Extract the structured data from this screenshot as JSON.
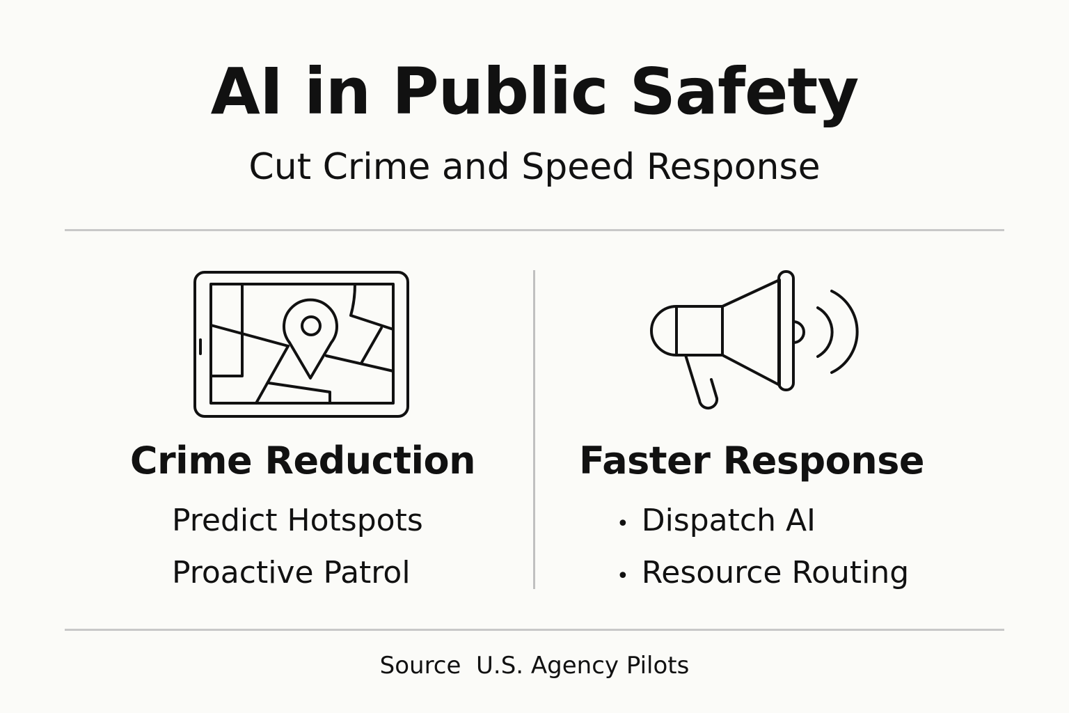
{
  "title": "AI in Public Safety",
  "subtitle": "Cut Crime and Speed Response",
  "left": {
    "icon": "tablet-map-pin-icon",
    "heading": "Crime Reduction",
    "items": [
      "Predict Hotspots",
      "Proactive Patrol"
    ]
  },
  "right": {
    "icon": "megaphone-icon",
    "heading": "Faster Response",
    "items": [
      "Dispatch AI",
      "Resource Routing"
    ],
    "bullet": "•"
  },
  "source": "Source  U.S. Agency Pilots"
}
